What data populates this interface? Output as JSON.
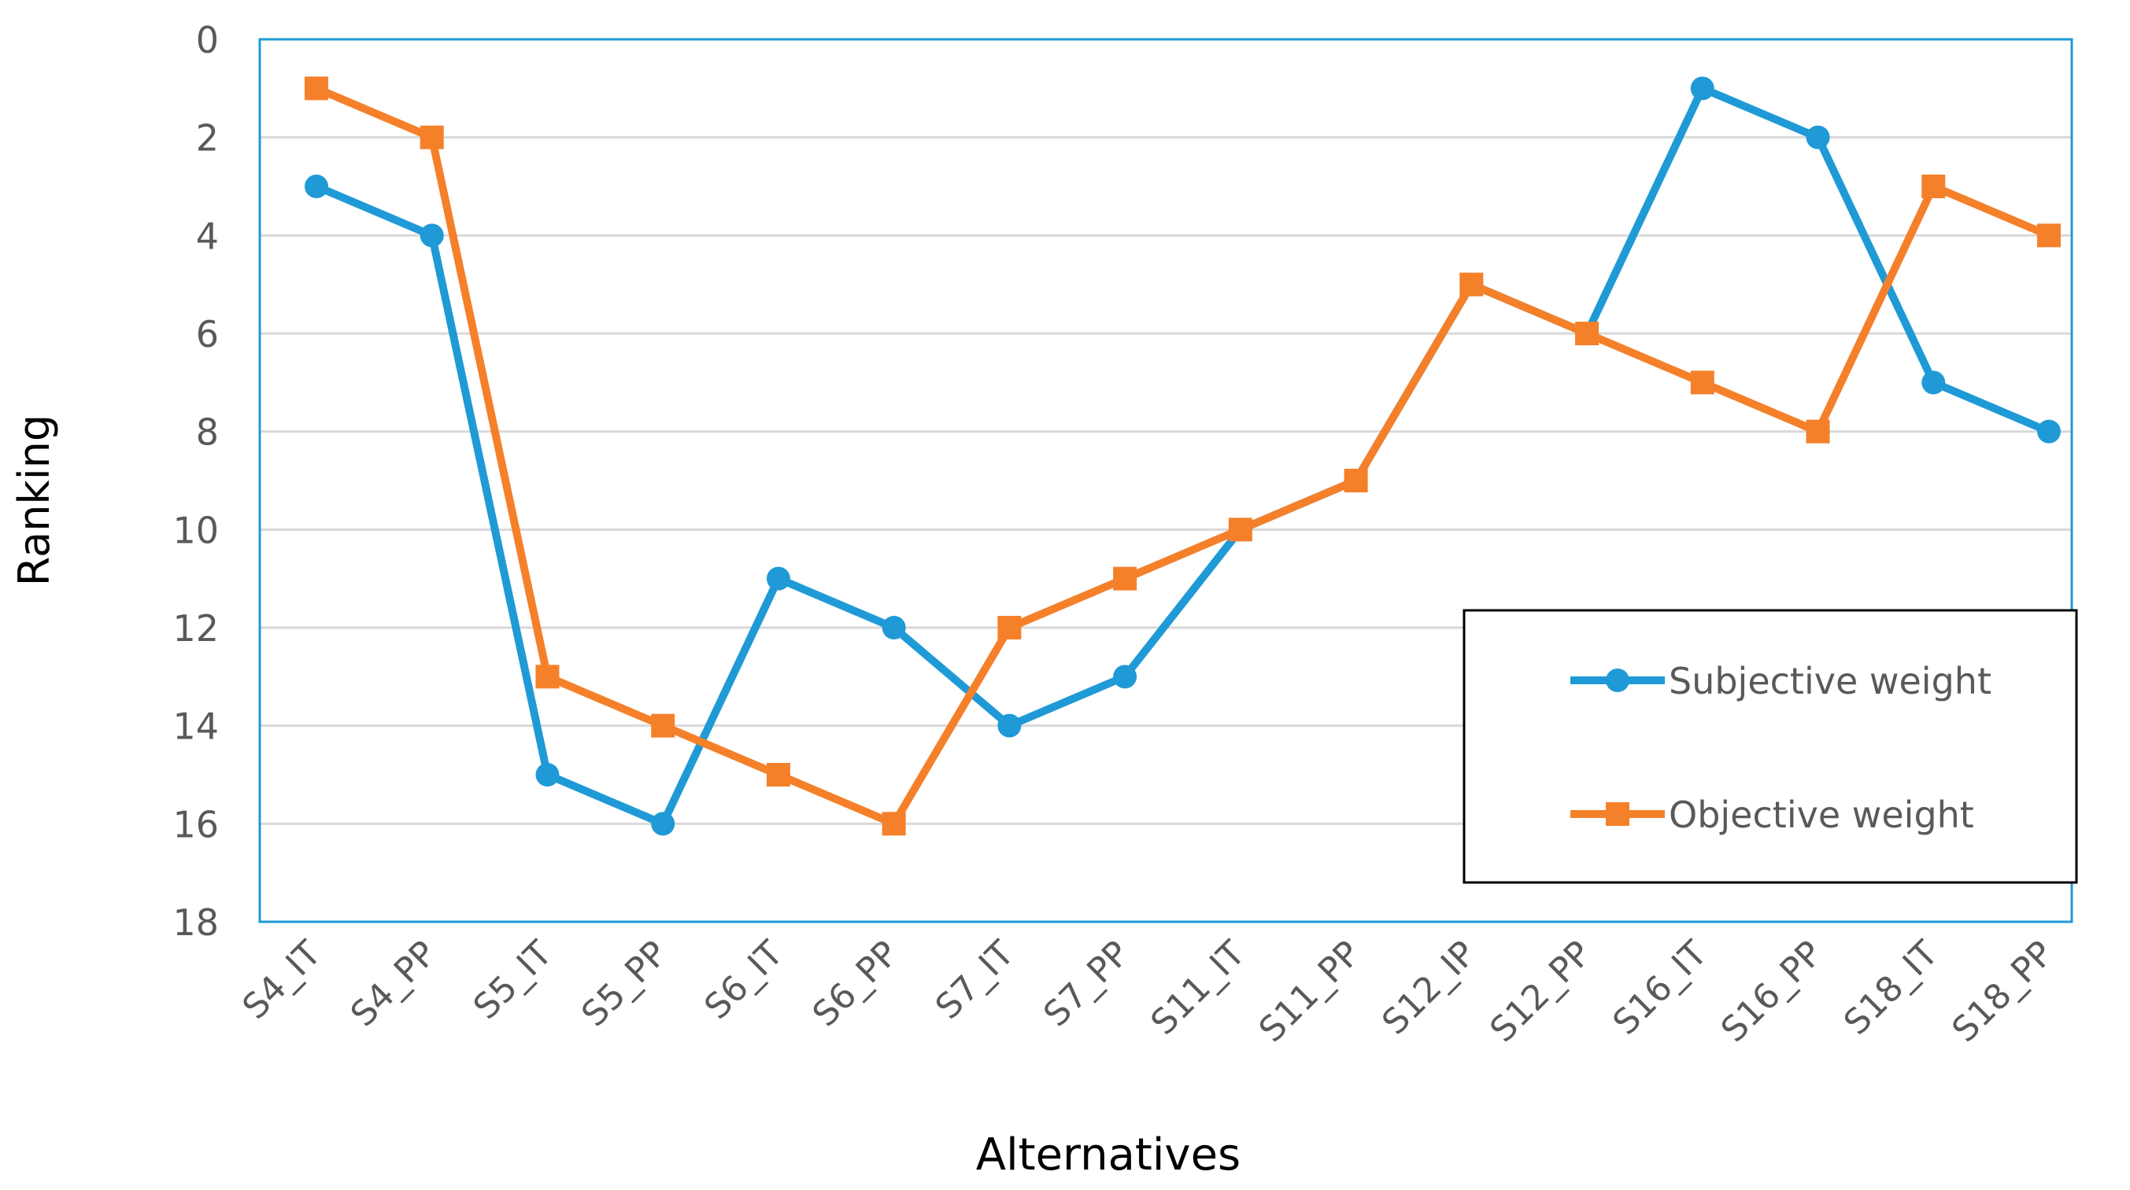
{
  "chart_data": {
    "type": "line",
    "title": "",
    "xlabel": "Alternatives",
    "ylabel": "Ranking",
    "categories": [
      "S4_IT",
      "S4_PP",
      "S5_IT",
      "S5_PP",
      "S6_IT",
      "S6_PP",
      "S7_IT",
      "S7_PP",
      "S11_IT",
      "S11_PP",
      "S12_IP",
      "S12_PP",
      "S16_IT",
      "S16_PP",
      "S18_IT",
      "S18_PP"
    ],
    "ylim": [
      0,
      18
    ],
    "y_reversed": true,
    "yticks": [
      "0",
      "2",
      "4",
      "6",
      "8",
      "10",
      "12",
      "14",
      "16",
      "18"
    ],
    "grid": "horizontal",
    "legend_position": "bottom-right",
    "series": [
      {
        "name": "Subjective weight",
        "values": [
          3,
          4,
          15,
          16,
          11,
          12,
          14,
          13,
          10,
          9,
          5,
          6,
          1,
          2,
          7,
          8
        ],
        "color": "#1f9ad6",
        "marker": "circle"
      },
      {
        "name": "Objective weight",
        "values": [
          1,
          2,
          13,
          14,
          15,
          16,
          12,
          11,
          10,
          9,
          5,
          6,
          7,
          8,
          3,
          4
        ],
        "color": "#f5802a",
        "marker": "square"
      }
    ]
  }
}
